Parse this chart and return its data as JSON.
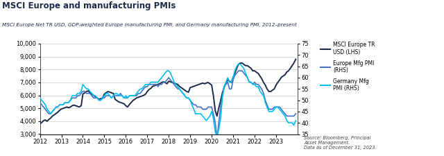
{
  "title": "MSCI Europe and manufacturing PMIs",
  "subtitle": "MSCI Europe Net TR USD, GDP-weighted Europe manufacturing PMI, and Germany manufacturing PMI, 2012–present",
  "source_text": "Source: Bloomberg, Principal\nAsset Management.\nData as of December 31, 2023.",
  "legend": [
    {
      "label": "MSCI Europe TR\nUSD (LHS)",
      "color": "#1a2b4a"
    },
    {
      "label": "Europe Mfg PMI\n(RHS)",
      "color": "#4472c4"
    },
    {
      "label": "Germany Mfg\nPMI (RHS)",
      "color": "#00c0f0"
    }
  ],
  "lhs_ylim": [
    3000,
    10000
  ],
  "lhs_yticks": [
    3000,
    4000,
    5000,
    6000,
    7000,
    8000,
    9000,
    10000
  ],
  "rhs_ylim": [
    35,
    75
  ],
  "rhs_yticks": [
    35,
    40,
    45,
    50,
    55,
    60,
    65,
    70,
    75
  ],
  "xlim_start": 2012.0,
  "xlim_end": 2024.0,
  "xtick_labels": [
    "2012",
    "2013",
    "2014",
    "2015",
    "2016",
    "2017",
    "2018",
    "2019",
    "2020",
    "2021",
    "2022",
    "2023"
  ],
  "msci_data": {
    "x": [
      2012.0,
      2012.08,
      2012.17,
      2012.25,
      2012.33,
      2012.42,
      2012.5,
      2012.58,
      2012.67,
      2012.75,
      2012.83,
      2012.92,
      2013.0,
      2013.08,
      2013.17,
      2013.25,
      2013.33,
      2013.42,
      2013.5,
      2013.58,
      2013.67,
      2013.75,
      2013.83,
      2013.92,
      2014.0,
      2014.08,
      2014.17,
      2014.25,
      2014.33,
      2014.42,
      2014.5,
      2014.58,
      2014.67,
      2014.75,
      2014.83,
      2014.92,
      2015.0,
      2015.08,
      2015.17,
      2015.25,
      2015.33,
      2015.42,
      2015.5,
      2015.58,
      2015.67,
      2015.75,
      2015.83,
      2015.92,
      2016.0,
      2016.08,
      2016.17,
      2016.25,
      2016.33,
      2016.42,
      2016.5,
      2016.58,
      2016.67,
      2016.75,
      2016.83,
      2016.92,
      2017.0,
      2017.08,
      2017.17,
      2017.25,
      2017.33,
      2017.42,
      2017.5,
      2017.58,
      2017.67,
      2017.75,
      2017.83,
      2017.92,
      2018.0,
      2018.08,
      2018.17,
      2018.25,
      2018.33,
      2018.42,
      2018.5,
      2018.58,
      2018.67,
      2018.75,
      2018.83,
      2018.92,
      2019.0,
      2019.08,
      2019.17,
      2019.25,
      2019.33,
      2019.42,
      2019.5,
      2019.58,
      2019.67,
      2019.75,
      2019.83,
      2019.92,
      2020.0,
      2020.08,
      2020.17,
      2020.25,
      2020.33,
      2020.42,
      2020.5,
      2020.58,
      2020.67,
      2020.75,
      2020.83,
      2020.92,
      2021.0,
      2021.08,
      2021.17,
      2021.25,
      2021.33,
      2021.42,
      2021.5,
      2021.58,
      2021.67,
      2021.75,
      2021.83,
      2021.92,
      2022.0,
      2022.08,
      2022.17,
      2022.25,
      2022.33,
      2022.42,
      2022.5,
      2022.58,
      2022.67,
      2022.75,
      2022.83,
      2022.92,
      2023.0,
      2023.08,
      2023.17,
      2023.25,
      2023.33,
      2023.42,
      2023.5,
      2023.58,
      2023.67,
      2023.75,
      2023.83,
      2023.92
    ],
    "y": [
      3800,
      3900,
      4050,
      4100,
      4000,
      4150,
      4250,
      4400,
      4500,
      4600,
      4700,
      4850,
      4950,
      5000,
      5050,
      5100,
      5050,
      5100,
      5200,
      5250,
      5200,
      5150,
      5100,
      5200,
      6100,
      6200,
      6300,
      6350,
      6200,
      6100,
      6000,
      5900,
      5800,
      5700,
      5750,
      5800,
      6100,
      6200,
      6300,
      6250,
      6200,
      6150,
      5700,
      5600,
      5500,
      5450,
      5400,
      5350,
      5200,
      5100,
      5300,
      5450,
      5600,
      5700,
      5800,
      5850,
      5900,
      5950,
      6000,
      6100,
      6300,
      6450,
      6550,
      6700,
      6750,
      6800,
      6850,
      6900,
      7000,
      7050,
      7000,
      6900,
      7100,
      7050,
      7000,
      6950,
      6900,
      6850,
      6700,
      6600,
      6500,
      6400,
      6300,
      6250,
      6600,
      6650,
      6700,
      6750,
      6800,
      6850,
      6900,
      6950,
      6900,
      6950,
      7000,
      6900,
      6800,
      6000,
      4800,
      4400,
      5000,
      5600,
      6200,
      6600,
      7000,
      7200,
      7100,
      7000,
      7400,
      7700,
      8100,
      8400,
      8500,
      8500,
      8400,
      8300,
      8300,
      8200,
      8100,
      7900,
      7900,
      7800,
      7700,
      7500,
      7300,
      7000,
      6800,
      6500,
      6300,
      6300,
      6400,
      6500,
      6800,
      7000,
      7200,
      7400,
      7500,
      7600,
      7800,
      7900,
      8100,
      8300,
      8500,
      8800
    ]
  },
  "europe_pmi_data": {
    "x": [
      2012.0,
      2012.08,
      2012.17,
      2012.25,
      2012.33,
      2012.42,
      2012.5,
      2012.58,
      2012.67,
      2012.75,
      2012.83,
      2012.92,
      2013.0,
      2013.08,
      2013.17,
      2013.25,
      2013.33,
      2013.42,
      2013.5,
      2013.58,
      2013.67,
      2013.75,
      2013.83,
      2013.92,
      2014.0,
      2014.08,
      2014.17,
      2014.25,
      2014.33,
      2014.42,
      2014.5,
      2014.58,
      2014.67,
      2014.75,
      2014.83,
      2014.92,
      2015.0,
      2015.08,
      2015.17,
      2015.25,
      2015.33,
      2015.42,
      2015.5,
      2015.58,
      2015.67,
      2015.75,
      2015.83,
      2015.92,
      2016.0,
      2016.08,
      2016.17,
      2016.25,
      2016.33,
      2016.42,
      2016.5,
      2016.58,
      2016.67,
      2016.75,
      2016.83,
      2016.92,
      2017.0,
      2017.08,
      2017.17,
      2017.25,
      2017.33,
      2017.42,
      2017.5,
      2017.58,
      2017.67,
      2017.75,
      2017.83,
      2017.92,
      2018.0,
      2018.08,
      2018.17,
      2018.25,
      2018.33,
      2018.42,
      2018.5,
      2018.58,
      2018.67,
      2018.75,
      2018.83,
      2018.92,
      2019.0,
      2019.08,
      2019.17,
      2019.25,
      2019.33,
      2019.42,
      2019.5,
      2019.58,
      2019.67,
      2019.75,
      2019.83,
      2019.92,
      2020.0,
      2020.08,
      2020.17,
      2020.25,
      2020.33,
      2020.42,
      2020.5,
      2020.58,
      2020.67,
      2020.75,
      2020.83,
      2020.92,
      2021.0,
      2021.08,
      2021.17,
      2021.25,
      2021.33,
      2021.42,
      2021.5,
      2021.58,
      2021.67,
      2021.75,
      2021.83,
      2021.92,
      2022.0,
      2022.08,
      2022.17,
      2022.25,
      2022.33,
      2022.42,
      2022.5,
      2022.58,
      2022.67,
      2022.75,
      2022.83,
      2022.92,
      2023.0,
      2023.08,
      2023.17,
      2023.25,
      2023.33,
      2023.42,
      2023.5,
      2023.58,
      2023.67,
      2023.75,
      2023.83,
      2023.92
    ],
    "y": [
      49,
      48,
      47,
      46,
      45,
      44,
      44,
      45,
      46,
      47,
      47,
      48,
      48,
      48,
      49,
      49,
      49,
      50,
      51,
      51,
      51,
      52,
      52,
      53,
      54,
      54,
      53,
      53,
      53,
      52,
      51,
      51,
      51,
      50,
      50,
      51,
      51,
      52,
      52,
      52,
      51,
      52,
      52,
      52,
      52,
      53,
      52,
      51,
      51,
      51,
      52,
      52,
      52,
      52,
      52,
      53,
      53,
      54,
      55,
      56,
      56,
      57,
      57,
      57,
      57,
      57,
      56,
      57,
      57,
      58,
      58,
      59,
      60,
      59,
      58,
      57,
      56,
      55,
      55,
      54,
      53,
      52,
      51,
      51,
      50,
      49,
      48,
      48,
      47,
      47,
      47,
      46,
      46,
      46,
      47,
      47,
      47,
      44,
      40,
      33,
      40,
      47,
      52,
      56,
      57,
      58,
      55,
      55,
      59,
      61,
      62,
      63,
      63,
      63,
      62,
      61,
      60,
      58,
      58,
      57,
      58,
      57,
      57,
      56,
      55,
      53,
      50,
      48,
      46,
      46,
      46,
      47,
      47,
      47,
      47,
      46,
      45,
      44,
      43,
      43,
      43,
      43,
      43,
      44
    ]
  },
  "germany_pmi_data": {
    "x": [
      2012.0,
      2012.08,
      2012.17,
      2012.25,
      2012.33,
      2012.42,
      2012.5,
      2012.58,
      2012.67,
      2012.75,
      2012.83,
      2012.92,
      2013.0,
      2013.08,
      2013.17,
      2013.25,
      2013.33,
      2013.42,
      2013.5,
      2013.58,
      2013.67,
      2013.75,
      2013.83,
      2013.92,
      2014.0,
      2014.08,
      2014.17,
      2014.25,
      2014.33,
      2014.42,
      2014.5,
      2014.58,
      2014.67,
      2014.75,
      2014.83,
      2014.92,
      2015.0,
      2015.08,
      2015.17,
      2015.25,
      2015.33,
      2015.42,
      2015.5,
      2015.58,
      2015.67,
      2015.75,
      2015.83,
      2015.92,
      2016.0,
      2016.08,
      2016.17,
      2016.25,
      2016.33,
      2016.42,
      2016.5,
      2016.58,
      2016.67,
      2016.75,
      2016.83,
      2016.92,
      2017.0,
      2017.08,
      2017.17,
      2017.25,
      2017.33,
      2017.42,
      2017.5,
      2017.58,
      2017.67,
      2017.75,
      2017.83,
      2017.92,
      2018.0,
      2018.08,
      2018.17,
      2018.25,
      2018.33,
      2018.42,
      2018.5,
      2018.58,
      2018.67,
      2018.75,
      2018.83,
      2018.92,
      2019.0,
      2019.08,
      2019.17,
      2019.25,
      2019.33,
      2019.42,
      2019.5,
      2019.58,
      2019.67,
      2019.75,
      2019.83,
      2019.92,
      2020.0,
      2020.08,
      2020.17,
      2020.25,
      2020.33,
      2020.42,
      2020.5,
      2020.58,
      2020.67,
      2020.75,
      2020.83,
      2020.92,
      2021.0,
      2021.08,
      2021.17,
      2021.25,
      2021.33,
      2021.42,
      2021.5,
      2021.58,
      2021.67,
      2021.75,
      2021.83,
      2021.92,
      2022.0,
      2022.08,
      2022.17,
      2022.25,
      2022.33,
      2022.42,
      2022.5,
      2022.58,
      2022.67,
      2022.75,
      2022.83,
      2022.92,
      2023.0,
      2023.08,
      2023.17,
      2023.25,
      2023.33,
      2023.42,
      2023.5,
      2023.58,
      2023.67,
      2023.75,
      2023.83,
      2023.92
    ],
    "y": [
      51,
      50,
      49,
      48,
      46,
      45,
      44,
      45,
      46,
      47,
      47,
      48,
      48,
      48,
      49,
      49,
      49,
      50,
      52,
      52,
      52,
      53,
      53,
      54,
      57,
      56,
      55,
      55,
      54,
      53,
      52,
      52,
      51,
      50,
      50,
      51,
      52,
      53,
      53,
      52,
      51,
      52,
      53,
      53,
      52,
      52,
      52,
      51,
      52,
      51,
      52,
      52,
      52,
      52,
      53,
      54,
      55,
      55,
      56,
      57,
      57,
      57,
      58,
      58,
      58,
      58,
      58,
      59,
      60,
      61,
      62,
      63,
      63,
      62,
      60,
      58,
      57,
      56,
      55,
      54,
      53,
      52,
      51,
      51,
      50,
      48,
      46,
      44,
      44,
      44,
      44,
      43,
      42,
      41,
      42,
      43,
      45,
      42,
      36,
      34,
      37,
      42,
      51,
      56,
      58,
      60,
      58,
      58,
      60,
      63,
      65,
      66,
      66,
      65,
      64,
      62,
      60,
      58,
      58,
      57,
      57,
      56,
      56,
      54,
      53,
      52,
      49,
      47,
      45,
      45,
      45,
      46,
      47,
      47,
      46,
      45,
      44,
      43,
      41,
      40,
      40,
      40,
      39,
      41
    ]
  },
  "title_color": "#1c2b4a",
  "subtitle_color": "#1c2b4a",
  "bg_color": "#ffffff",
  "grid_color": "#cccccc"
}
